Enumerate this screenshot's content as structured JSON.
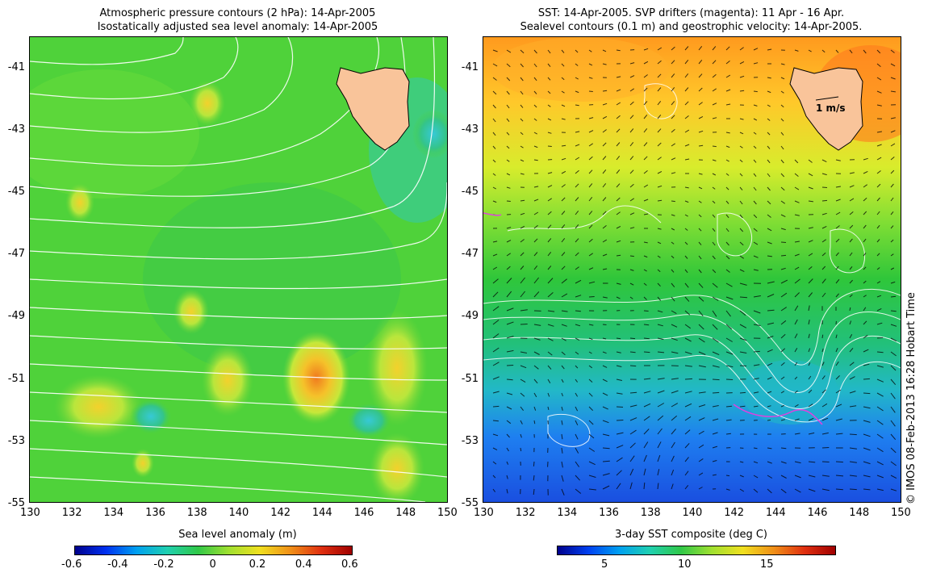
{
  "left_panel": {
    "title_line1": "Atmospheric pressure contours (2 hPa): 14-Apr-2005",
    "title_line2": "Isostatically adjusted sea level anomaly: 14-Apr-2005",
    "colorbar_label": "Sea level anomaly (m)",
    "colorbar_ticks": [
      "-0.6",
      "-0.4",
      "-0.2",
      "0",
      "0.2",
      "0.4",
      "0.6"
    ]
  },
  "right_panel": {
    "title_line1": "SST: 14-Apr-2005. SVP drifters (magenta): 11 Apr - 16 Apr.",
    "title_line2": "Sealevel contours (0.1 m) and geostrophic velocity: 14-Apr-2005.",
    "colorbar_label": "3-day SST composite (deg C)",
    "colorbar_ticks": [
      "5",
      "10",
      "15"
    ],
    "velocity_scale_label": "1 m/s"
  },
  "axes": {
    "lon_ticks": [
      "130",
      "132",
      "134",
      "136",
      "138",
      "140",
      "142",
      "144",
      "146",
      "148",
      "150"
    ],
    "lat_ticks": [
      "-41",
      "-43",
      "-45",
      "-47",
      "-49",
      "-51",
      "-53",
      "-55"
    ]
  },
  "credit": "© IMOS 08-Feb-2013 16:28 Hobart Time",
  "colors": {
    "land": "#f9c49a",
    "sla_background": "#4fd23a",
    "sst_warm": "#ff9a1e",
    "sst_mid": "#2fc63a",
    "sst_cold": "#1e7ff0",
    "drifter": "#e040e0"
  }
}
